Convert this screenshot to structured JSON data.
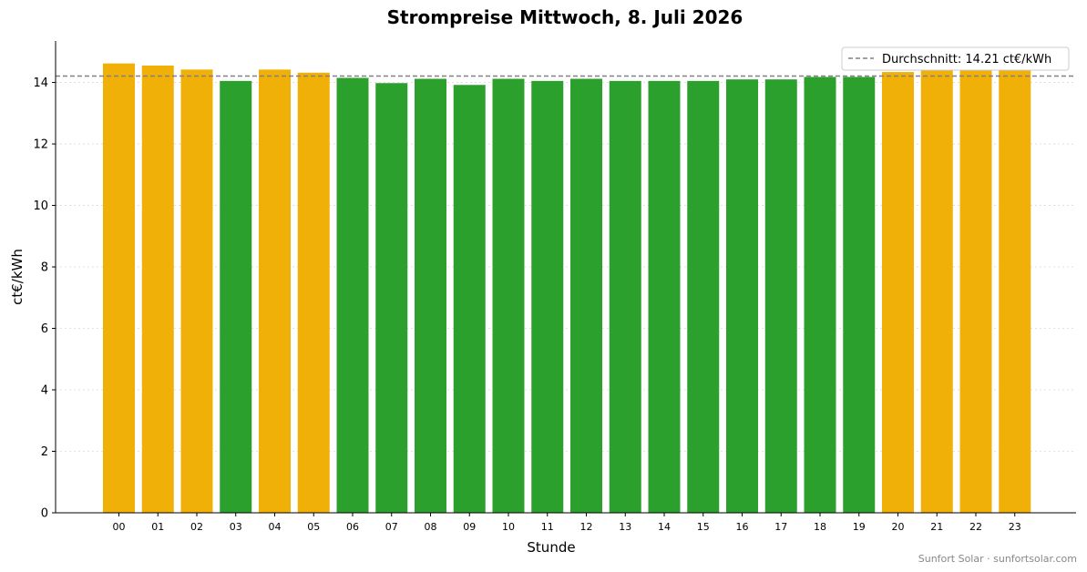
{
  "chart_data": {
    "type": "bar",
    "title": "Strompreise Mittwoch, 8. Juli 2026",
    "xlabel": "Stunde",
    "ylabel": "ct€/kWh",
    "categories": [
      "00",
      "01",
      "02",
      "03",
      "04",
      "05",
      "06",
      "07",
      "08",
      "09",
      "10",
      "11",
      "12",
      "13",
      "14",
      "15",
      "16",
      "17",
      "18",
      "19",
      "20",
      "21",
      "22",
      "23"
    ],
    "values": [
      14.62,
      14.55,
      14.42,
      14.05,
      14.42,
      14.32,
      14.15,
      13.98,
      14.12,
      13.92,
      14.12,
      14.05,
      14.12,
      14.05,
      14.05,
      14.05,
      14.1,
      14.1,
      14.18,
      14.18,
      14.34,
      14.4,
      14.4,
      14.42
    ],
    "bar_colors": [
      "#f0b007",
      "#f0b007",
      "#f0b007",
      "#2ca02c",
      "#f0b007",
      "#f0b007",
      "#2ca02c",
      "#2ca02c",
      "#2ca02c",
      "#2ca02c",
      "#2ca02c",
      "#2ca02c",
      "#2ca02c",
      "#2ca02c",
      "#2ca02c",
      "#2ca02c",
      "#2ca02c",
      "#2ca02c",
      "#2ca02c",
      "#2ca02c",
      "#f0b007",
      "#f0b007",
      "#f0b007",
      "#f0b007"
    ],
    "average": 14.21,
    "average_color": "#808080",
    "legend": {
      "label": "Durchschnitt: 14.21 ct€/kWh",
      "placement": "top-right"
    },
    "ylim": [
      0,
      15.35
    ],
    "yticks": [
      0,
      2,
      4,
      6,
      8,
      10,
      12,
      14
    ],
    "grid": true,
    "watermark": "Sunfort Solar · sunfortsolar.com"
  }
}
